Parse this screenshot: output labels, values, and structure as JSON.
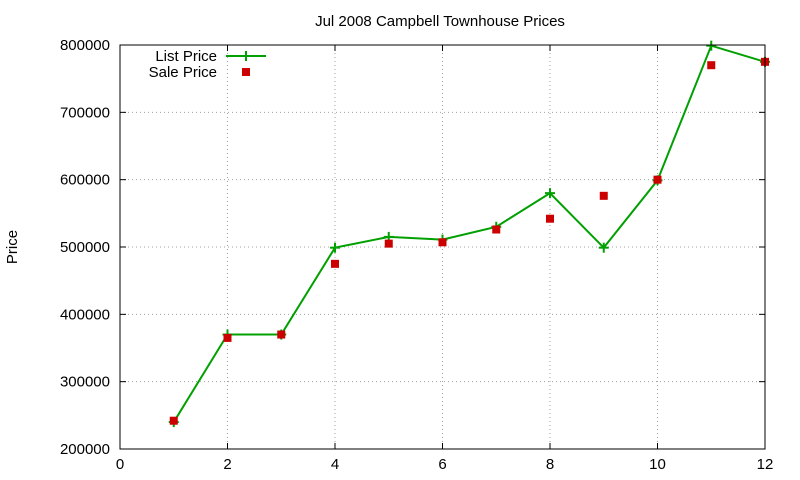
{
  "chart_data": {
    "type": "line",
    "title": "Jul 2008 Campbell Townhouse Prices",
    "xlabel": "",
    "ylabel": "Price",
    "xlim": [
      0,
      12
    ],
    "ylim": [
      200000,
      800000
    ],
    "xticks": [
      "0",
      "2",
      "4",
      "6",
      "8",
      "10",
      "12"
    ],
    "yticks": [
      "200000",
      "300000",
      "400000",
      "500000",
      "600000",
      "700000",
      "800000"
    ],
    "grid": true,
    "legend_position": "top-left",
    "series": [
      {
        "name": "List Price",
        "style": "line-with-plus-markers",
        "color": "#00a000",
        "x": [
          1,
          2,
          3,
          4,
          5,
          6,
          7,
          8,
          9,
          10,
          11,
          12
        ],
        "y": [
          240000,
          370000,
          370000,
          499000,
          515000,
          511000,
          530000,
          580000,
          499000,
          599000,
          799000,
          775000
        ]
      },
      {
        "name": "Sale Price",
        "style": "square-markers",
        "color": "#cc0000",
        "x": [
          1,
          2,
          3,
          4,
          5,
          6,
          7,
          8,
          9,
          10,
          11,
          12
        ],
        "y": [
          242000,
          365000,
          370000,
          475000,
          505000,
          507000,
          526000,
          542000,
          576000,
          600000,
          770000,
          775000
        ]
      }
    ]
  }
}
